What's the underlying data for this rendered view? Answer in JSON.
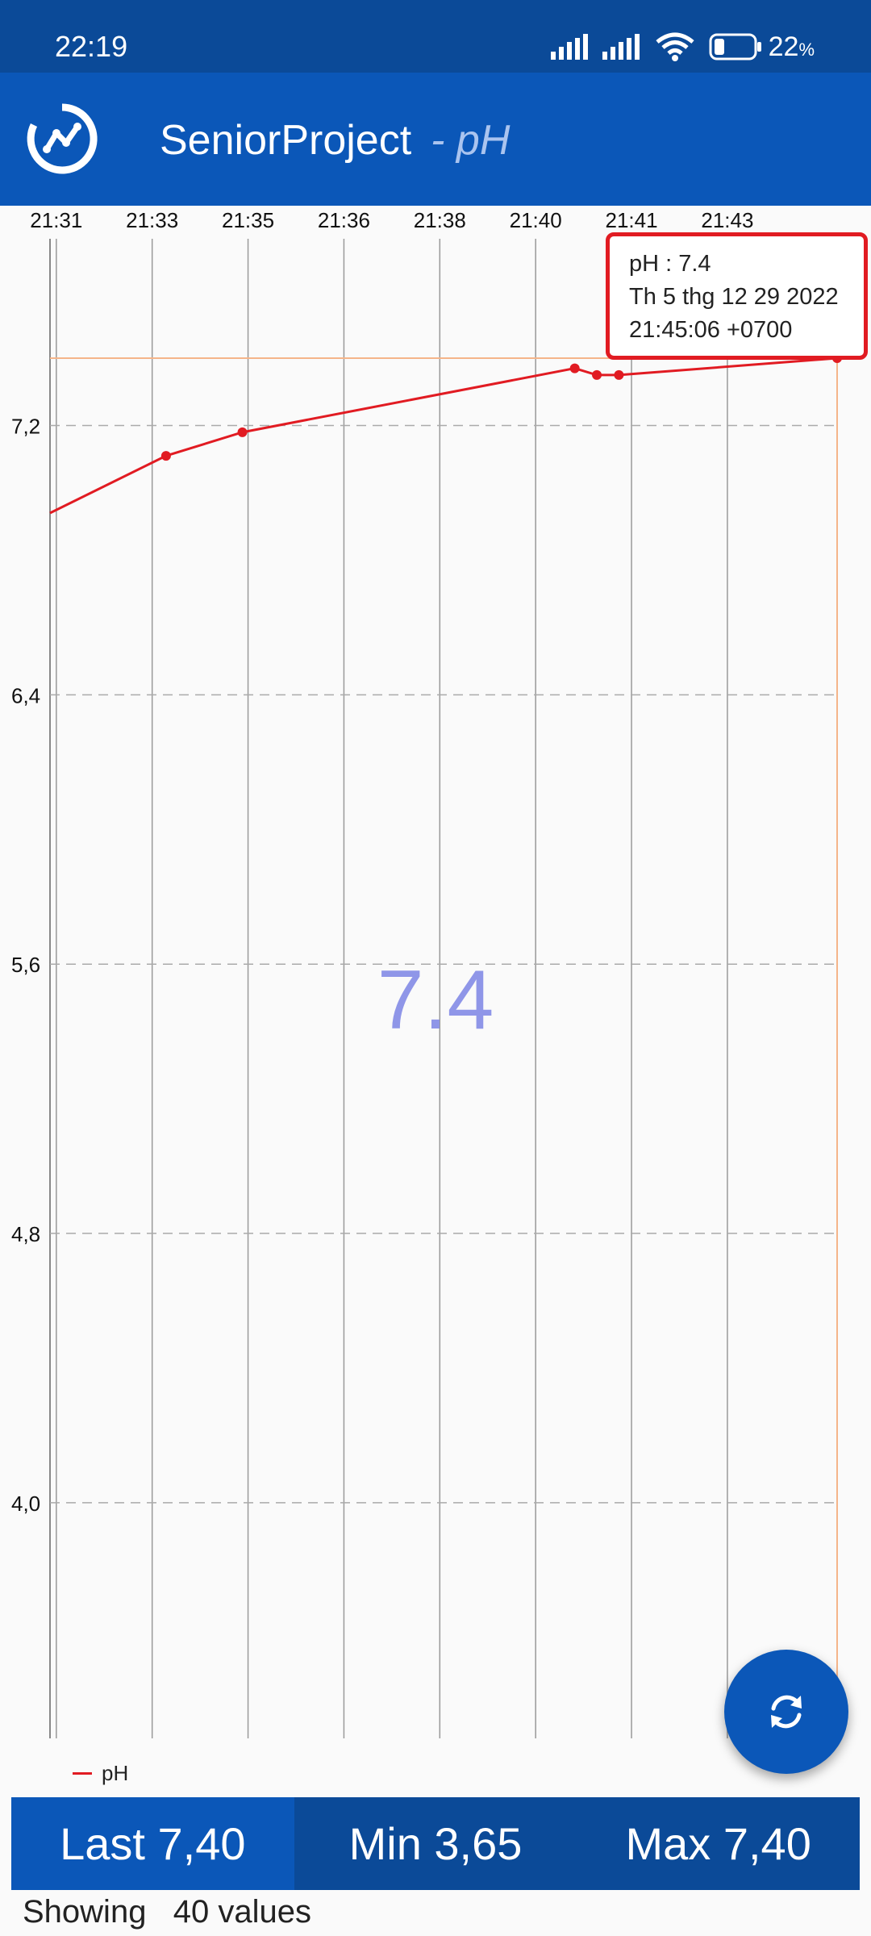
{
  "status_bar": {
    "time": "22:19",
    "battery_percent": "22",
    "battery_suffix": "%",
    "icons": [
      "signal-icon",
      "signal-icon",
      "wifi-icon",
      "battery-icon"
    ]
  },
  "app_bar": {
    "logo_icon": "chart-logo-icon",
    "title": "SeniorProject",
    "subtitle": "- pH"
  },
  "chart_data": {
    "type": "line",
    "ylim": [
      3.3,
      7.75
    ],
    "yticks": [
      {
        "value": 7.2,
        "label": "7,2"
      },
      {
        "value": 6.4,
        "label": "6,4"
      },
      {
        "value": 5.6,
        "label": "5,6"
      },
      {
        "value": 4.8,
        "label": "4,8"
      },
      {
        "value": 4.0,
        "label": "4,0"
      }
    ],
    "xticks": [
      {
        "t": 0.1,
        "label": "21:31"
      },
      {
        "t": 1.62,
        "label": "21:33"
      },
      {
        "t": 3.14,
        "label": "21:35"
      },
      {
        "t": 4.66,
        "label": "21:36"
      },
      {
        "t": 6.18,
        "label": "21:38"
      },
      {
        "t": 7.7,
        "label": "21:40"
      },
      {
        "t": 9.22,
        "label": "21:41"
      },
      {
        "t": 10.74,
        "label": "21:43"
      }
    ],
    "xlim": [
      0,
      12.48
    ],
    "series": [
      {
        "name": "pH",
        "color": "#e11b22",
        "points": [
          {
            "t": 0.0,
            "v": 6.94,
            "marker": false
          },
          {
            "t": 1.84,
            "v": 7.11,
            "marker": true
          },
          {
            "t": 3.05,
            "v": 7.18,
            "marker": true
          },
          {
            "t": 8.32,
            "v": 7.37,
            "marker": true
          },
          {
            "t": 8.67,
            "v": 7.35,
            "marker": true
          },
          {
            "t": 9.02,
            "v": 7.35,
            "marker": true
          },
          {
            "t": 12.48,
            "v": 7.4,
            "marker": true
          }
        ]
      }
    ],
    "highlight": {
      "t": 12.48,
      "v": 7.4
    },
    "grid": true,
    "legend_position": "bottom-left"
  },
  "center_value": "7.4",
  "tooltip": {
    "line1": "pH : 7.4",
    "line2": "Th 5 thg 12 29 2022",
    "line3": "21:45:06 +0700"
  },
  "legend": {
    "label": "pH",
    "color": "#e11b22"
  },
  "stats": {
    "last": "Last 7,40",
    "min": "Min 3,65",
    "max": "Max 7,40"
  },
  "footer": {
    "showing_label": "Showing",
    "showing_value": "40 values"
  },
  "fab": {
    "icon": "refresh-icon"
  },
  "colors": {
    "primary": "#0b57b8",
    "primary_dark": "#0b4a98",
    "line": "#e11b22",
    "highlight_line": "#f5b58a",
    "big_value": "#8f96e8"
  }
}
